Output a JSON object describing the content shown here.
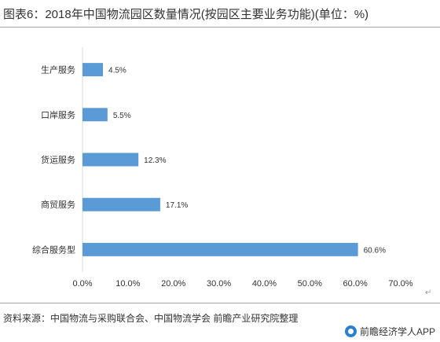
{
  "title": "图表6：2018年中国物流园区数量情况(按园区主要业务功能)(单位：%)",
  "source": "资料来源：中国物流与采购联合会、中国物流学会 前瞻产业研究院整理",
  "brand": "前瞻经济学人APP",
  "corner_mark": "↵",
  "colors": {
    "bar": "#5b9bd5",
    "text": "#333333",
    "axis": "#d9d9d9"
  },
  "chart_data": {
    "type": "bar",
    "orientation": "horizontal",
    "categories": [
      "生产服务",
      "口岸服务",
      "货运服务",
      "商贸服务",
      "综合服务型"
    ],
    "values": [
      4.5,
      5.5,
      12.3,
      17.1,
      60.6
    ],
    "data_labels": [
      "4.5%",
      "5.5%",
      "12.3%",
      "17.1%",
      "60.6%"
    ],
    "xlim": [
      0,
      70
    ],
    "xticks": [
      0,
      10,
      20,
      30,
      40,
      50,
      60,
      70
    ],
    "xtick_labels": [
      "0.0%",
      "10.0%",
      "20.0%",
      "30.0%",
      "40.0%",
      "50.0%",
      "60.0%",
      "70.0%"
    ],
    "grid": false,
    "legend": "none"
  }
}
